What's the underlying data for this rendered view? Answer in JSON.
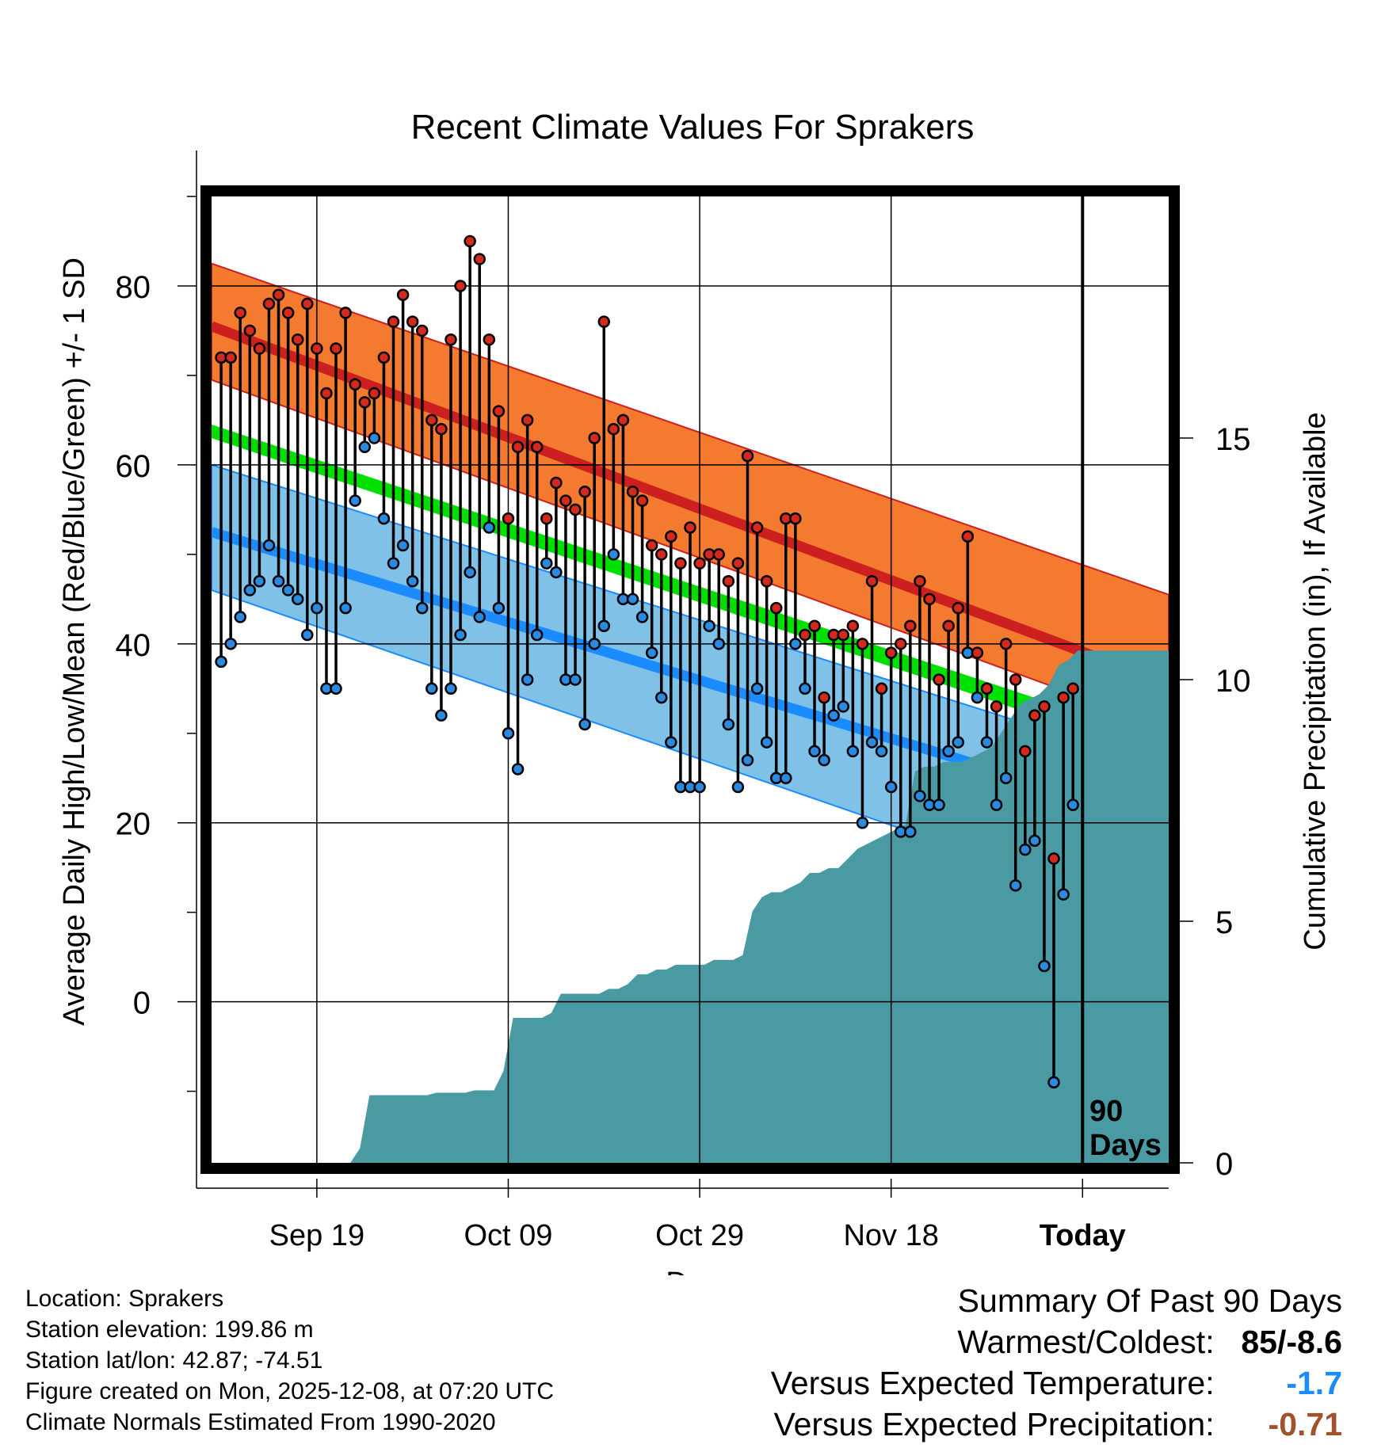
{
  "chart_data": {
    "type": "line",
    "title": "Recent Climate Values For Sprakers",
    "xlabel": "Day",
    "ylabel": "Average Daily High/Low/Mean (Red/Blue/Green) +/- 1 SD",
    "ylabel_right": "Cumulative Precipitation (in), If Available",
    "x_range_days": [
      -91,
      9
    ],
    "ylim": [
      -18,
      90
    ],
    "ylim_precip": [
      0,
      20
    ],
    "x_ticks": [
      {
        "day": -80,
        "label": "Sep 19"
      },
      {
        "day": -60,
        "label": "Oct 09"
      },
      {
        "day": -40,
        "label": "Oct 29"
      },
      {
        "day": -20,
        "label": "Nov 18"
      },
      {
        "day": 0,
        "label": "Today"
      }
    ],
    "y_ticks": [
      0,
      20,
      40,
      60,
      80
    ],
    "precip_ticks": [
      0,
      5,
      10,
      15
    ],
    "today_label": [
      "90",
      "Days"
    ],
    "colors": {
      "high_band": "#f47a2f",
      "high_line": "#cc2020",
      "low_band": "#80c1e8",
      "low_line": "#1a8cff",
      "mean_band": "#00e000",
      "precip_fill": "#4a9aa4",
      "high_marker": "#d42a1e",
      "low_marker": "#2a8ae0"
    },
    "normals": {
      "days": [
        -91,
        9
      ],
      "high_upper": [
        82.5,
        45.5
      ],
      "high_mean": [
        75.5,
        35.5
      ],
      "high_lower": [
        69.5,
        30.5
      ],
      "mean_upper": [
        64.5,
        29.0
      ],
      "mean_lower": [
        63.0,
        27.0
      ],
      "low_upper": [
        60.0,
        26.0
      ],
      "low_mean": [
        52.5,
        20.0
      ],
      "low_lower": [
        46.0,
        9.0
      ]
    },
    "series": [
      {
        "name": "Daily High",
        "values": [
          72,
          72,
          77,
          75,
          73,
          78,
          79,
          77,
          74,
          78,
          73,
          68,
          73,
          77,
          69,
          67,
          68,
          72,
          76,
          79,
          76,
          75,
          65,
          64,
          74,
          80,
          85,
          83,
          74,
          66,
          54,
          62,
          65,
          62,
          54,
          58,
          56,
          55,
          57,
          63,
          76,
          64,
          65,
          57,
          56,
          51,
          50,
          52,
          49,
          53,
          49,
          50,
          50,
          47,
          49,
          61,
          53,
          47,
          44,
          54,
          54,
          41,
          42,
          34,
          41,
          41,
          42,
          40,
          47,
          35,
          39,
          40,
          42,
          47,
          45,
          36,
          42,
          44,
          52,
          39,
          35,
          33,
          40,
          36,
          28,
          32,
          33,
          16,
          34,
          35
        ]
      },
      {
        "name": "Daily Low",
        "values": [
          38,
          40,
          43,
          46,
          47,
          51,
          47,
          46,
          45,
          41,
          44,
          35,
          35,
          44,
          56,
          62,
          63,
          54,
          49,
          51,
          47,
          44,
          35,
          32,
          35,
          41,
          48,
          43,
          53,
          44,
          30,
          26,
          36,
          41,
          49,
          48,
          36,
          36,
          31,
          40,
          42,
          50,
          45,
          45,
          43,
          39,
          34,
          29,
          24,
          24,
          24,
          42,
          40,
          31,
          24,
          27,
          35,
          29,
          25,
          25,
          40,
          35,
          28,
          27,
          32,
          33,
          28,
          20,
          29,
          28,
          24,
          19,
          19,
          23,
          22,
          22,
          28,
          29,
          39,
          34,
          29,
          22,
          25,
          13,
          17,
          18,
          4,
          -9,
          12,
          22
        ]
      }
    ],
    "precip_cumulative": [
      0,
      0,
      0,
      0,
      0,
      0,
      0,
      0,
      0,
      0,
      0,
      0,
      0,
      0,
      0,
      0.3,
      1.4,
      1.4,
      1.4,
      1.4,
      1.4,
      1.4,
      1.4,
      1.45,
      1.45,
      1.45,
      1.45,
      1.5,
      1.5,
      1.5,
      1.9,
      3.0,
      3.0,
      3.0,
      3.0,
      3.1,
      3.5,
      3.5,
      3.5,
      3.5,
      3.5,
      3.6,
      3.6,
      3.7,
      3.9,
      3.9,
      4.0,
      4.0,
      4.1,
      4.1,
      4.1,
      4.1,
      4.2,
      4.2,
      4.2,
      4.3,
      5.2,
      5.5,
      5.6,
      5.6,
      5.7,
      5.8,
      6.0,
      6.0,
      6.1,
      6.1,
      6.3,
      6.5,
      6.6,
      6.7,
      6.8,
      6.9,
      7.0,
      8.1,
      8.2,
      8.2,
      8.3,
      8.3,
      8.3,
      8.4,
      8.5,
      8.6,
      8.9,
      9.2,
      9.5,
      9.6,
      9.7,
      9.9,
      10.3,
      10.4,
      10.6,
      10.6,
      10.6,
      10.6,
      10.6,
      10.6,
      10.6,
      10.6,
      10.6,
      10.6
    ]
  },
  "footer": {
    "location": "Location: Sprakers",
    "elevation": "Station elevation: 199.86 m",
    "latlon": "Station lat/lon: 42.87; -74.51",
    "created": "Figure created on Mon, 2025-12-08, at 07:20 UTC",
    "normals": "Climate Normals Estimated From 1990-2020"
  },
  "summary": {
    "title": "Summary Of Past 90 Days",
    "warmest_label": "Warmest/Coldest:",
    "warmest_value": "85/-8.6",
    "temp_label": "Versus Expected Temperature:",
    "temp_value": "-1.7",
    "temp_color": "#1a8cff",
    "precip_label": "Versus Expected Precipitation:",
    "precip_value": "-0.71",
    "precip_color": "#a0522d"
  }
}
